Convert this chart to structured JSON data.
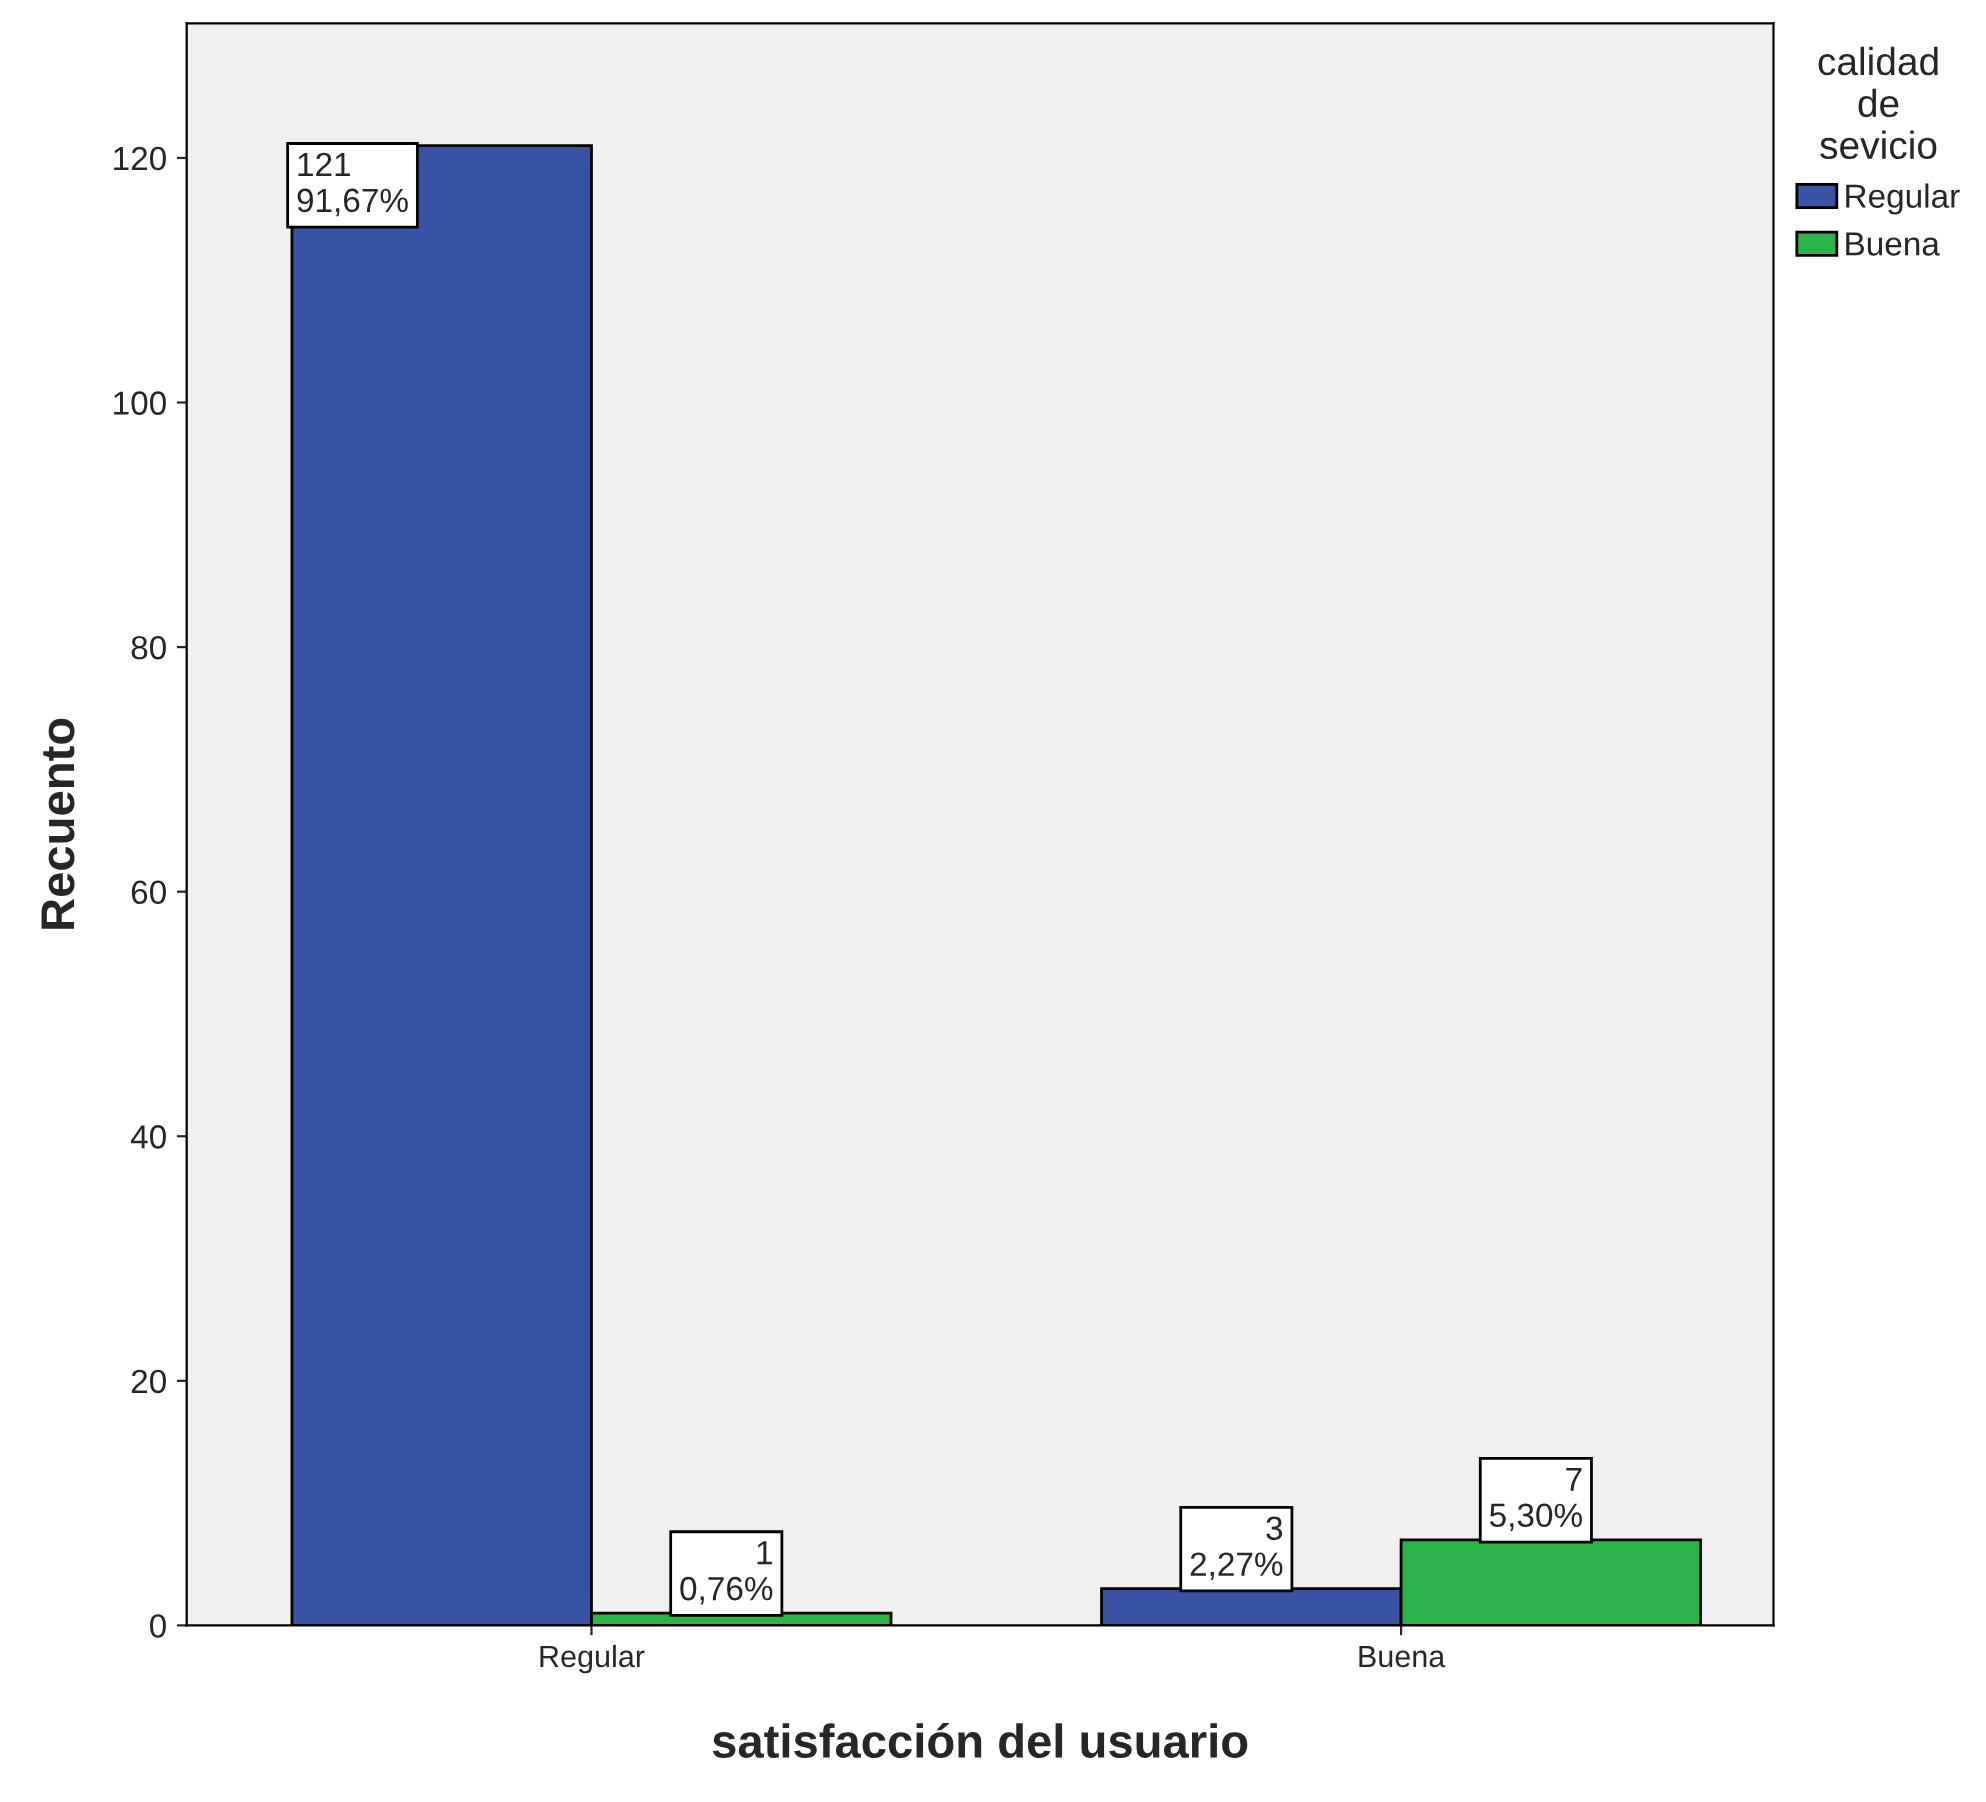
{
  "chart_data": {
    "type": "bar",
    "xlabel": "satisfacción del usuario",
    "ylabel": "Recuento",
    "legend_title": "calidad\nde\nsevicio",
    "categories": [
      "Regular",
      "Buena"
    ],
    "series": [
      {
        "name": "Regular",
        "color": "#3953a4",
        "values": [
          121,
          3
        ],
        "value_labels": [
          "121\n91,67%",
          "3\n2,27%"
        ]
      },
      {
        "name": "Buena",
        "color": "#2db34a",
        "values": [
          1,
          7
        ],
        "value_labels": [
          "1\n0,76%",
          "7\n5,30%"
        ]
      }
    ],
    "ylim": [
      0,
      131
    ],
    "yticks": [
      0,
      20,
      40,
      60,
      80,
      100,
      120
    ],
    "grid": false,
    "legend": "top right"
  }
}
